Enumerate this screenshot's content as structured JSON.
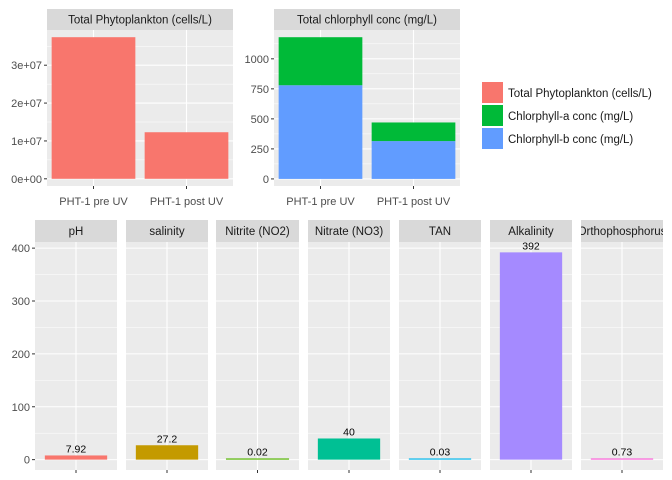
{
  "chart_data": [
    {
      "type": "bar",
      "title": "Total Phytoplankton (cells/L)",
      "categories": [
        "PHT-1 pre UV",
        "PHT-1 post UV"
      ],
      "series": [
        {
          "name": "Total Phytoplankton (cells/L)",
          "values": [
            37400000,
            12300000
          ]
        }
      ],
      "yticks": [
        "0e+00",
        "1e+07",
        "2e+07",
        "3e+07"
      ],
      "ytick_values": [
        0,
        10000000,
        20000000,
        30000000
      ],
      "ylim": [
        -1900000,
        39300000
      ],
      "grid": true,
      "colors": [
        "#F8766D"
      ]
    },
    {
      "type": "bar",
      "stacked": true,
      "title": "Total chlorphyll conc (mg/L)",
      "categories": [
        "PHT-1 pre UV",
        "PHT-1 post UV"
      ],
      "series": [
        {
          "name": "Chlorphyll-b conc (mg/L)",
          "values": [
            780,
            315
          ]
        },
        {
          "name": "Chlorphyll-a conc (mg/L)",
          "values": [
            400,
            155
          ]
        }
      ],
      "yticks": [
        "0",
        "250",
        "500",
        "750",
        "1000"
      ],
      "ytick_values": [
        0,
        250,
        500,
        750,
        1000
      ],
      "ylim": [
        -59,
        1240
      ],
      "grid": true,
      "colors": [
        "#619CFF",
        "#00BA38"
      ]
    },
    {
      "type": "bar",
      "title": "",
      "facets": [
        "pH",
        "salinity",
        "Nitrite (NO2)",
        "Nitrate (NO3)",
        "TAN",
        "Alkalinity",
        "Orthophosphorus"
      ],
      "values": [
        7.92,
        27.2,
        0.02,
        40,
        0.03,
        392,
        0.73
      ],
      "labels": [
        "7.92",
        "27.2",
        "0.02",
        "40",
        "0.03",
        "392",
        "0.73"
      ],
      "yticks": [
        "0",
        "100",
        "200",
        "300",
        "400"
      ],
      "ytick_values": [
        0,
        100,
        200,
        300,
        400
      ],
      "ylim": [
        -19.6,
        411.6
      ],
      "grid": true,
      "colors": [
        "#F8766D",
        "#C49A00",
        "#53B400",
        "#00C094",
        "#00B6EB",
        "#A58AFF",
        "#FB61D7"
      ]
    }
  ],
  "legend": {
    "position": "right",
    "entries": [
      {
        "label": "Total Phytoplankton (cells/L)",
        "color": "#F8766D"
      },
      {
        "label": "Chlorphyll-a conc (mg/L)",
        "color": "#00BA38"
      },
      {
        "label": "Chlorphyll-b conc (mg/L)",
        "color": "#619CFF"
      }
    ]
  }
}
